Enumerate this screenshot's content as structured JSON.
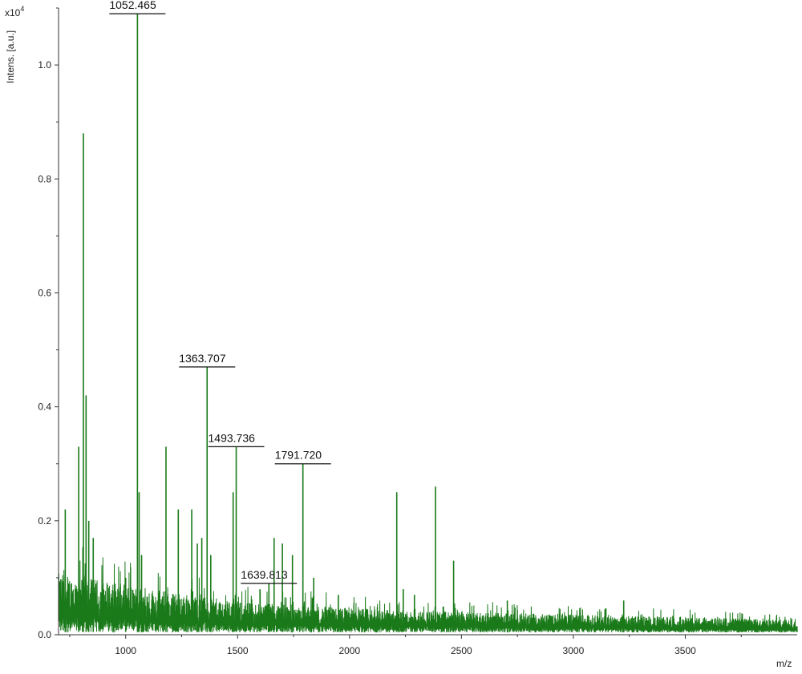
{
  "chart_data": {
    "type": "line",
    "title": "",
    "xlabel": "m/z",
    "ylabel": "Intens. [a.u.]",
    "y_multiplier": "x10",
    "y_multiplier_exp": "4",
    "xlim": [
      700,
      4000
    ],
    "ylim": [
      0,
      1.1
    ],
    "x_ticks": [
      "1000",
      "1500",
      "2000",
      "2500",
      "3000",
      "3500"
    ],
    "x_tick_values": [
      1000,
      1500,
      2000,
      2500,
      3000,
      3500
    ],
    "y_ticks": [
      "0.0",
      "0.2",
      "0.4",
      "0.6",
      "0.8",
      "1.0"
    ],
    "y_tick_values": [
      0.0,
      0.2,
      0.4,
      0.6,
      0.8,
      1.0
    ],
    "grid": false,
    "line_color": "#1a7a1a",
    "peaks": [
      {
        "x": 730,
        "y": 0.22
      },
      {
        "x": 790,
        "y": 0.33
      },
      {
        "x": 811,
        "y": 0.88
      },
      {
        "x": 823,
        "y": 0.42
      },
      {
        "x": 835,
        "y": 0.2
      },
      {
        "x": 855,
        "y": 0.17
      },
      {
        "x": 1000,
        "y": 0.1
      },
      {
        "x": 1052.465,
        "y": 1.09
      },
      {
        "x": 1060,
        "y": 0.25
      },
      {
        "x": 1071,
        "y": 0.14
      },
      {
        "x": 1180,
        "y": 0.33
      },
      {
        "x": 1235,
        "y": 0.22
      },
      {
        "x": 1295,
        "y": 0.22
      },
      {
        "x": 1320,
        "y": 0.16
      },
      {
        "x": 1340,
        "y": 0.17
      },
      {
        "x": 1363.707,
        "y": 0.47
      },
      {
        "x": 1380,
        "y": 0.14
      },
      {
        "x": 1480,
        "y": 0.25
      },
      {
        "x": 1493.736,
        "y": 0.33
      },
      {
        "x": 1600,
        "y": 0.08
      },
      {
        "x": 1639.813,
        "y": 0.09
      },
      {
        "x": 1663,
        "y": 0.17
      },
      {
        "x": 1700,
        "y": 0.16
      },
      {
        "x": 1745,
        "y": 0.14
      },
      {
        "x": 1791.72,
        "y": 0.3
      },
      {
        "x": 1840,
        "y": 0.1
      },
      {
        "x": 1950,
        "y": 0.07
      },
      {
        "x": 2211,
        "y": 0.25
      },
      {
        "x": 2240,
        "y": 0.08
      },
      {
        "x": 2290,
        "y": 0.07
      },
      {
        "x": 2384,
        "y": 0.26
      },
      {
        "x": 2465,
        "y": 0.13
      },
      {
        "x": 2705,
        "y": 0.06
      },
      {
        "x": 3225,
        "y": 0.06
      }
    ],
    "annotations": [
      {
        "label": "1052.465",
        "x": 1052.465,
        "y": 1.09
      },
      {
        "label": "1363.707",
        "x": 1363.707,
        "y": 0.47
      },
      {
        "label": "1493.736",
        "x": 1493.736,
        "y": 0.33
      },
      {
        "label": "1791.720",
        "x": 1791.72,
        "y": 0.3
      },
      {
        "label": "1639.813",
        "x": 1639.813,
        "y": 0.09
      }
    ]
  }
}
